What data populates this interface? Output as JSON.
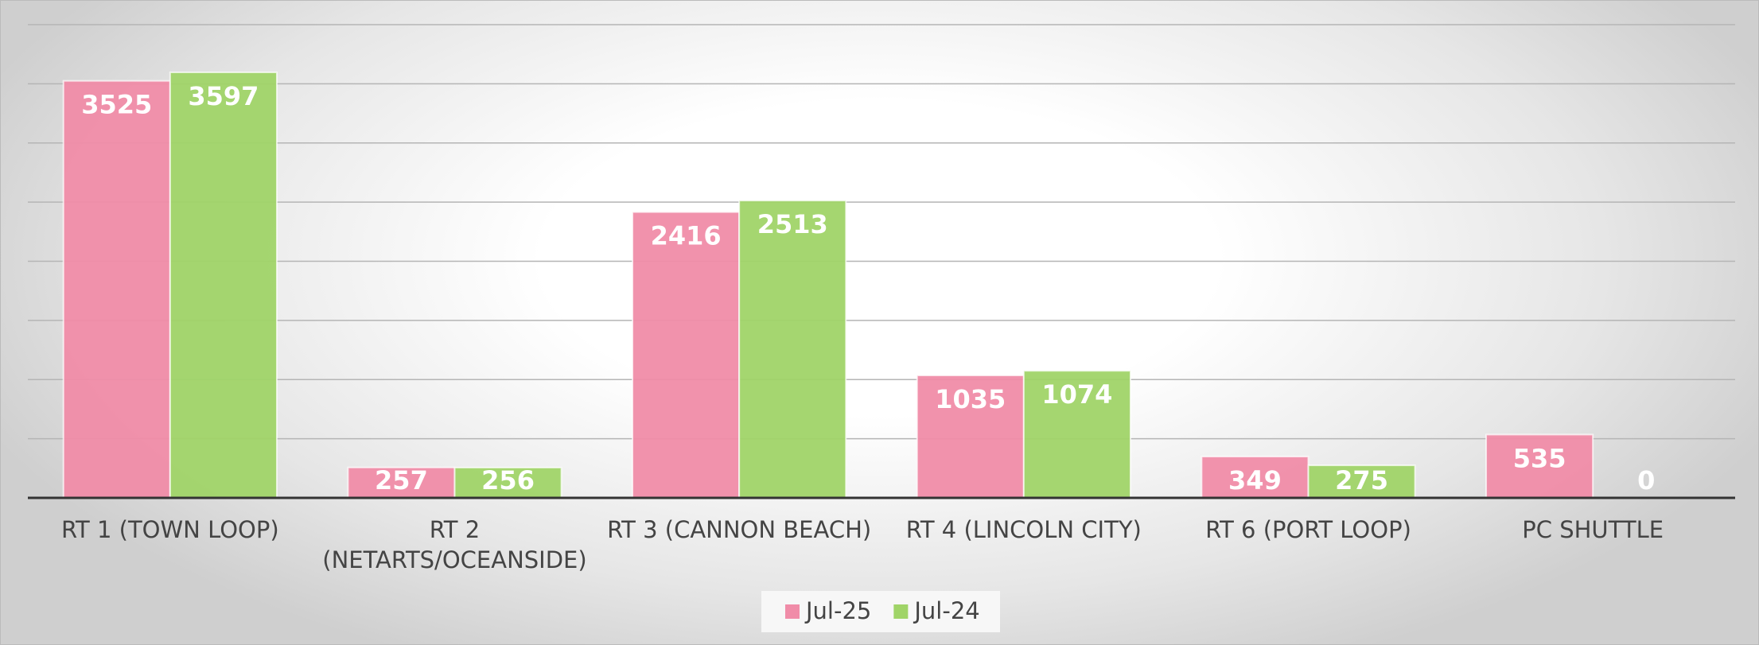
{
  "chart_data": {
    "type": "bar",
    "categories": [
      "RT 1 (TOWN LOOP)",
      "RT 2 (NETARTS/OCEANSIDE)",
      "RT 3 (CANNON BEACH)",
      "RT 4 (LINCOLN CITY)",
      "RT 6 (PORT LOOP)",
      "PC SHUTTLE"
    ],
    "series": [
      {
        "name": "Jul-25",
        "color": "#f08ca8",
        "values": [
          3525,
          257,
          2416,
          1035,
          349,
          535
        ]
      },
      {
        "name": "Jul-24",
        "color": "#a0d468",
        "values": [
          3597,
          256,
          2513,
          1074,
          275,
          0
        ]
      }
    ],
    "ylim": [
      0,
      4000
    ],
    "yticks": [
      0,
      500,
      1000,
      1500,
      2000,
      2500,
      3000,
      3500,
      4000
    ],
    "grid": true,
    "legend": "bottom"
  }
}
